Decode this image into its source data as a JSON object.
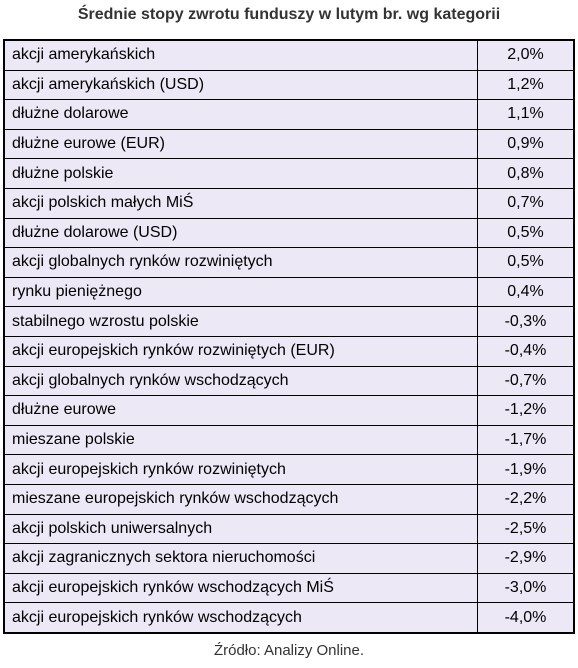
{
  "chart_data": {
    "type": "table",
    "title": "Średnie stopy zwrotu funduszy w lutym br. wg kategorii",
    "rows": [
      {
        "category": "akcji amerykańskich",
        "value": "2,0%"
      },
      {
        "category": "akcji amerykańskich (USD)",
        "value": "1,2%"
      },
      {
        "category": "dłużne dolarowe",
        "value": "1,1%"
      },
      {
        "category": "dłużne eurowe (EUR)",
        "value": "0,9%"
      },
      {
        "category": "dłużne polskie",
        "value": "0,8%"
      },
      {
        "category": "akcji polskich małych MiŚ",
        "value": "0,7%"
      },
      {
        "category": "dłużne dolarowe (USD)",
        "value": "0,5%"
      },
      {
        "category": "akcji globalnych rynków rozwiniętych",
        "value": "0,5%"
      },
      {
        "category": "rynku pieniężnego",
        "value": "0,4%"
      },
      {
        "category": "stabilnego wzrostu polskie",
        "value": "-0,3%"
      },
      {
        "category": "akcji europejskich rynków rozwiniętych (EUR)",
        "value": "-0,4%"
      },
      {
        "category": "akcji globalnych rynków wschodzących",
        "value": "-0,7%"
      },
      {
        "category": "dłużne eurowe",
        "value": "-1,2%"
      },
      {
        "category": "mieszane polskie",
        "value": "-1,7%"
      },
      {
        "category": "akcji europejskich rynków rozwiniętych",
        "value": "-1,9%"
      },
      {
        "category": "mieszane europejskich rynków wschodzących",
        "value": "-2,2%"
      },
      {
        "category": "akcji polskich uniwersalnych",
        "value": "-2,5%"
      },
      {
        "category": "akcji zagranicznych sektora nieruchomości",
        "value": "-2,9%"
      },
      {
        "category": "akcji europejskich rynków wschodzących MiŚ",
        "value": "-3,0%"
      },
      {
        "category": "akcji europejskich rynków wschodzących",
        "value": "-4,0%"
      }
    ],
    "source": "Źródło: Analizy Online."
  },
  "colors": {
    "cell_background": "#ece8f6",
    "border": "#000000",
    "title_text": "#333333"
  }
}
